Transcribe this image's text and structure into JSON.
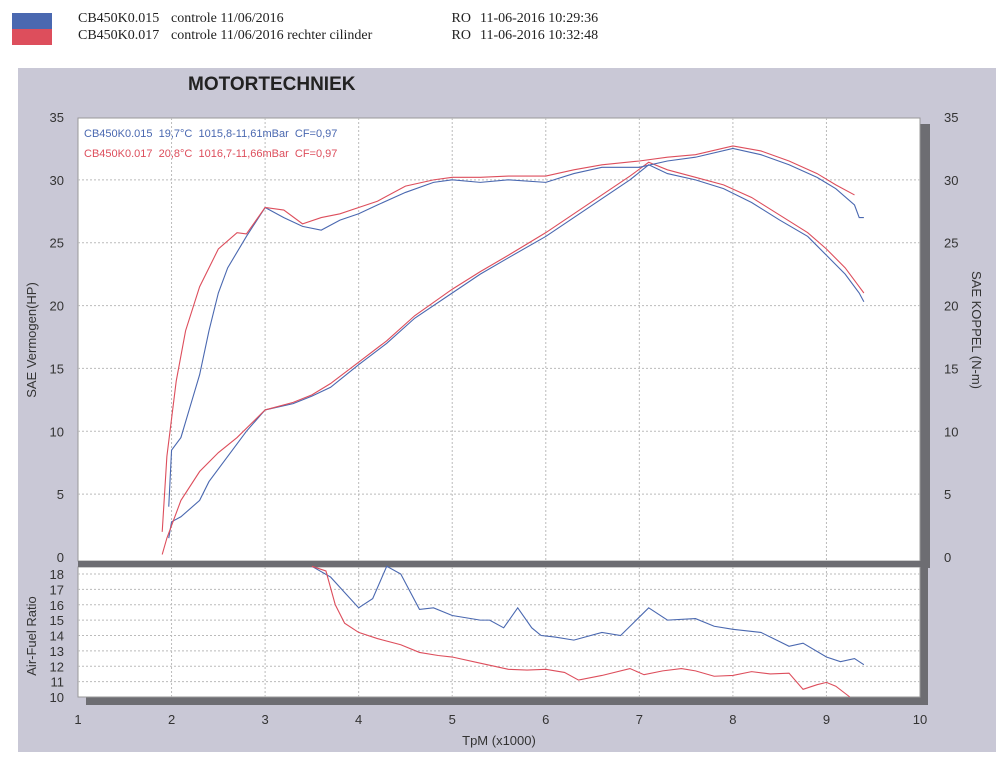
{
  "header": {
    "runs": [
      {
        "id": "CB450K0.015",
        "desc": "controle 11/06/2016",
        "op": "RO",
        "datetime": "11-06-2016 10:29:36",
        "color": "#4a68b0"
      },
      {
        "id": "CB450K0.017",
        "desc": "controle 11/06/2016 rechter cilinder",
        "op": "RO",
        "datetime": "11-06-2016 10:32:48",
        "color": "#dd4e5c"
      }
    ]
  },
  "title": "MOTORTECHNIEK",
  "chart_data": [
    {
      "type": "line",
      "xlabel": "TpM (x1000)",
      "ylabel": "SAE Vermogen(HP)",
      "ylabel_right": "SAE KOPPEL (N-m)",
      "xlim": [
        1,
        10
      ],
      "ylim": [
        0,
        35
      ],
      "xticks": [
        "1",
        "2",
        "3",
        "4",
        "5",
        "6",
        "7",
        "8",
        "9",
        "10"
      ],
      "yticks": [
        "0",
        "5",
        "10",
        "15",
        "20",
        "25",
        "30",
        "35"
      ],
      "grid": true,
      "legend": [
        {
          "text": "CB450K0.015  19,7°C  1015,8-11,61mBar  CF=0,97",
          "color": "#4a68b0"
        },
        {
          "text": "CB450K0.017  20,8°C  1016,7-11,66mBar  CF=0,97",
          "color": "#dd4e5c"
        }
      ],
      "legend_position": "top-left",
      "series": [
        {
          "name": "CB450K0.015",
          "color": "#4a68b0",
          "points": [
            [
              1.97,
              1.5
            ],
            [
              2.0,
              2.8
            ],
            [
              2.1,
              3.2
            ],
            [
              2.3,
              4.5
            ],
            [
              2.4,
              6
            ],
            [
              2.6,
              8
            ],
            [
              2.8,
              10
            ],
            [
              3.0,
              11.7
            ],
            [
              3.3,
              12.2
            ],
            [
              3.5,
              12.8
            ],
            [
              3.7,
              13.5
            ],
            [
              4.0,
              15.3
            ],
            [
              4.3,
              17
            ],
            [
              4.6,
              19
            ],
            [
              5.0,
              21
            ],
            [
              5.3,
              22.5
            ],
            [
              5.6,
              23.8
            ],
            [
              6.0,
              25.5
            ],
            [
              6.3,
              27
            ],
            [
              6.6,
              28.5
            ],
            [
              6.9,
              30
            ],
            [
              7.1,
              31.2
            ],
            [
              7.3,
              30.5
            ],
            [
              7.6,
              30
            ],
            [
              7.9,
              29.3
            ],
            [
              8.2,
              28.2
            ],
            [
              8.5,
              26.8
            ],
            [
              8.8,
              25.5
            ],
            [
              9.0,
              24
            ],
            [
              9.2,
              22.5
            ],
            [
              9.35,
              21
            ],
            [
              9.4,
              20.3
            ]
          ]
        },
        {
          "name": "CB450K0.017",
          "color": "#dd4e5c",
          "points": [
            [
              1.9,
              0.2
            ],
            [
              1.95,
              1.5
            ],
            [
              2.1,
              4.5
            ],
            [
              2.3,
              6.8
            ],
            [
              2.5,
              8.3
            ],
            [
              2.7,
              9.5
            ],
            [
              3.0,
              11.7
            ],
            [
              3.3,
              12.3
            ],
            [
              3.5,
              12.9
            ],
            [
              3.7,
              13.8
            ],
            [
              4.0,
              15.5
            ],
            [
              4.3,
              17.2
            ],
            [
              4.6,
              19.2
            ],
            [
              5.0,
              21.3
            ],
            [
              5.3,
              22.7
            ],
            [
              5.6,
              24
            ],
            [
              6.0,
              25.8
            ],
            [
              6.3,
              27.3
            ],
            [
              6.6,
              28.8
            ],
            [
              6.9,
              30.3
            ],
            [
              7.1,
              31.4
            ],
            [
              7.3,
              30.8
            ],
            [
              7.6,
              30.2
            ],
            [
              7.9,
              29.6
            ],
            [
              8.2,
              28.6
            ],
            [
              8.5,
              27.2
            ],
            [
              8.8,
              25.8
            ],
            [
              9.0,
              24.5
            ],
            [
              9.2,
              23
            ],
            [
              9.35,
              21.5
            ],
            [
              9.4,
              21
            ]
          ]
        },
        {
          "name": "CB450K0.015",
          "color": "#4a68b0",
          "points": [
            [
              1.97,
              4
            ],
            [
              2.0,
              8.5
            ],
            [
              2.1,
              9.5
            ],
            [
              2.2,
              12
            ],
            [
              2.3,
              14.5
            ],
            [
              2.4,
              18
            ],
            [
              2.5,
              21
            ],
            [
              2.6,
              23
            ],
            [
              2.8,
              25.5
            ],
            [
              3.0,
              27.8
            ],
            [
              3.2,
              27
            ],
            [
              3.4,
              26.3
            ],
            [
              3.6,
              26
            ],
            [
              3.8,
              26.8
            ],
            [
              4.0,
              27.3
            ],
            [
              4.2,
              28
            ],
            [
              4.5,
              29
            ],
            [
              4.8,
              29.8
            ],
            [
              5.0,
              30
            ],
            [
              5.3,
              29.8
            ],
            [
              5.6,
              30
            ],
            [
              6.0,
              29.8
            ],
            [
              6.3,
              30.5
            ],
            [
              6.6,
              31
            ],
            [
              7.0,
              31
            ],
            [
              7.3,
              31.5
            ],
            [
              7.6,
              31.8
            ],
            [
              8.0,
              32.5
            ],
            [
              8.3,
              32
            ],
            [
              8.6,
              31.2
            ],
            [
              8.9,
              30.2
            ],
            [
              9.1,
              29.3
            ],
            [
              9.3,
              28
            ],
            [
              9.35,
              27
            ],
            [
              9.4,
              27
            ]
          ]
        },
        {
          "name": "CB450K0.017",
          "color": "#dd4e5c",
          "points": [
            [
              1.9,
              2
            ],
            [
              1.95,
              8
            ],
            [
              2.05,
              14
            ],
            [
              2.15,
              18
            ],
            [
              2.3,
              21.5
            ],
            [
              2.5,
              24.5
            ],
            [
              2.7,
              25.8
            ],
            [
              2.8,
              25.7
            ],
            [
              3.0,
              27.8
            ],
            [
              3.2,
              27.6
            ],
            [
              3.4,
              26.5
            ],
            [
              3.6,
              27
            ],
            [
              3.8,
              27.3
            ],
            [
              4.0,
              27.8
            ],
            [
              4.2,
              28.3
            ],
            [
              4.5,
              29.5
            ],
            [
              4.8,
              30
            ],
            [
              5.0,
              30.2
            ],
            [
              5.3,
              30.2
            ],
            [
              5.6,
              30.3
            ],
            [
              6.0,
              30.3
            ],
            [
              6.3,
              30.8
            ],
            [
              6.6,
              31.2
            ],
            [
              7.0,
              31.5
            ],
            [
              7.3,
              31.8
            ],
            [
              7.6,
              32
            ],
            [
              8.0,
              32.7
            ],
            [
              8.3,
              32.3
            ],
            [
              8.6,
              31.5
            ],
            [
              8.9,
              30.5
            ],
            [
              9.1,
              29.6
            ],
            [
              9.3,
              28.8
            ]
          ]
        }
      ]
    },
    {
      "type": "line",
      "xlabel": "TpM (x1000)",
      "ylabel": "Air-Fuel Ratio",
      "xlim": [
        1,
        10
      ],
      "ylim": [
        10,
        18
      ],
      "yticks": [
        "10",
        "11",
        "12",
        "13",
        "14",
        "15",
        "16",
        "17",
        "18"
      ],
      "grid": true,
      "series": [
        {
          "name": "CB450K0.015",
          "color": "#4a68b0",
          "points": [
            [
              3.5,
              18.5
            ],
            [
              3.7,
              17.8
            ],
            [
              3.85,
              16.8
            ],
            [
              4.0,
              15.8
            ],
            [
              4.15,
              16.4
            ],
            [
              4.3,
              18.5
            ],
            [
              4.45,
              18
            ],
            [
              4.65,
              15.7
            ],
            [
              4.8,
              15.8
            ],
            [
              5.0,
              15.3
            ],
            [
              5.3,
              15
            ],
            [
              5.4,
              15
            ],
            [
              5.55,
              14.5
            ],
            [
              5.7,
              15.8
            ],
            [
              5.85,
              14.5
            ],
            [
              5.95,
              14
            ],
            [
              6.1,
              13.9
            ],
            [
              6.3,
              13.7
            ],
            [
              6.6,
              14.2
            ],
            [
              6.8,
              14
            ],
            [
              7.0,
              15.2
            ],
            [
              7.1,
              15.8
            ],
            [
              7.3,
              15
            ],
            [
              7.6,
              15.1
            ],
            [
              7.8,
              14.6
            ],
            [
              8.0,
              14.4
            ],
            [
              8.3,
              14.2
            ],
            [
              8.5,
              13.6
            ],
            [
              8.6,
              13.3
            ],
            [
              8.75,
              13.5
            ],
            [
              9.0,
              12.6
            ],
            [
              9.15,
              12.3
            ],
            [
              9.3,
              12.5
            ],
            [
              9.4,
              12.1
            ]
          ]
        },
        {
          "name": "CB450K0.017",
          "color": "#dd4e5c",
          "points": [
            [
              3.5,
              18.5
            ],
            [
              3.65,
              18.2
            ],
            [
              3.75,
              16
            ],
            [
              3.85,
              14.8
            ],
            [
              4.0,
              14.2
            ],
            [
              4.2,
              13.8
            ],
            [
              4.45,
              13.4
            ],
            [
              4.65,
              12.9
            ],
            [
              4.85,
              12.7
            ],
            [
              5.0,
              12.6
            ],
            [
              5.3,
              12.2
            ],
            [
              5.6,
              11.8
            ],
            [
              5.8,
              11.75
            ],
            [
              6.0,
              11.8
            ],
            [
              6.2,
              11.6
            ],
            [
              6.35,
              11.1
            ],
            [
              6.6,
              11.4
            ],
            [
              6.9,
              11.85
            ],
            [
              7.05,
              11.45
            ],
            [
              7.25,
              11.7
            ],
            [
              7.45,
              11.85
            ],
            [
              7.6,
              11.7
            ],
            [
              7.8,
              11.35
            ],
            [
              8.0,
              11.4
            ],
            [
              8.2,
              11.65
            ],
            [
              8.4,
              11.5
            ],
            [
              8.6,
              11.55
            ],
            [
              8.75,
              10.5
            ],
            [
              8.9,
              10.8
            ],
            [
              9.0,
              10.95
            ],
            [
              9.1,
              10.7
            ],
            [
              9.25,
              10
            ]
          ]
        }
      ]
    }
  ]
}
